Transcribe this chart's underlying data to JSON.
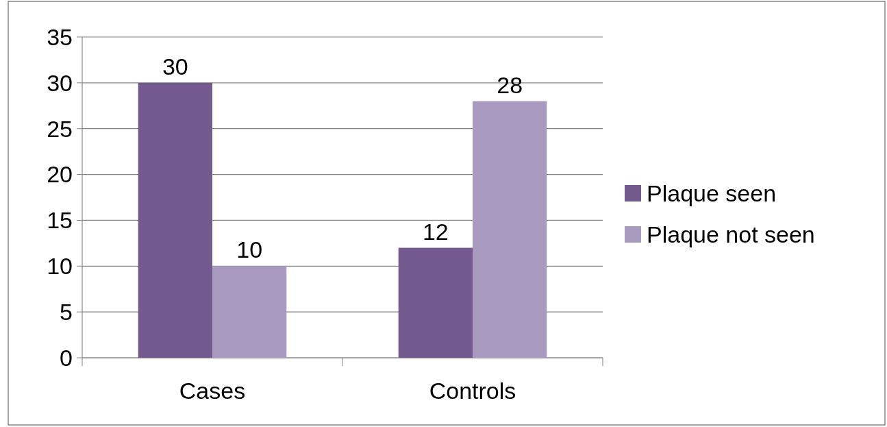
{
  "chart_data": {
    "type": "bar",
    "categories": [
      "Cases",
      "Controls"
    ],
    "series": [
      {
        "name": "Plaque seen",
        "color": "#725a8f",
        "values": [
          30,
          12
        ]
      },
      {
        "name": "Plaque not seen",
        "color": "#a99bbf",
        "values": [
          10,
          28
        ]
      }
    ],
    "ylim": [
      0,
      35
    ],
    "yticks": [
      0,
      5,
      10,
      15,
      20,
      25,
      30,
      35
    ],
    "grid": "y",
    "legend": "right",
    "data_labels": true
  }
}
